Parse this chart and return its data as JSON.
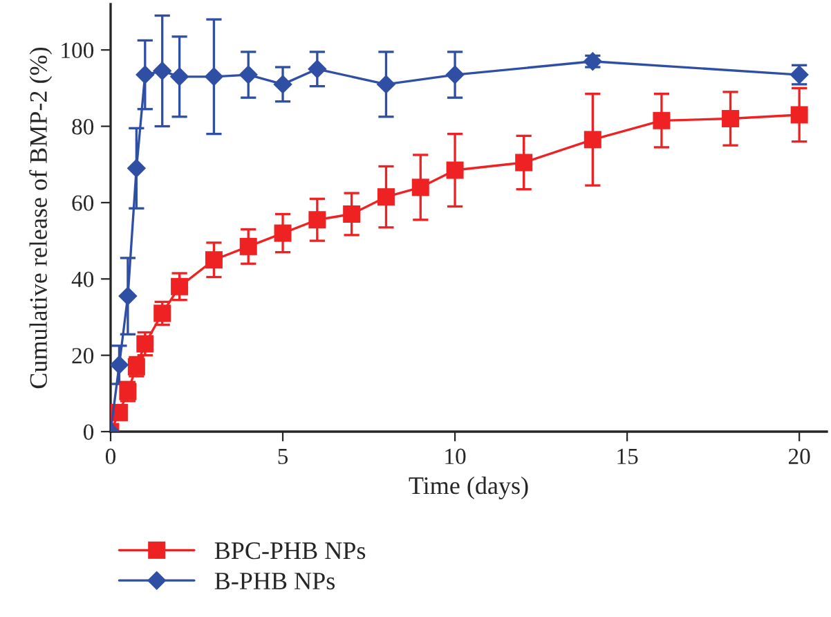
{
  "chart_data": {
    "type": "line",
    "xlabel": "Time (days)",
    "ylabel": "Cumulative release of BMP-2 (%)",
    "xlim": [
      0,
      20.8
    ],
    "ylim": [
      0,
      112
    ],
    "xticks": [
      0,
      5,
      10,
      15,
      20
    ],
    "yticks": [
      0,
      20,
      40,
      60,
      80,
      100
    ],
    "grid": false,
    "legend": "bottom",
    "line_style": "solid",
    "series": [
      {
        "name": "BPC-PHB NPs",
        "color": "#ee2222",
        "marker": "square",
        "x": [
          0,
          0.25,
          0.5,
          0.75,
          1,
          1.5,
          2,
          3,
          4,
          5,
          6,
          7,
          8,
          9,
          10,
          12,
          14,
          16,
          18,
          20
        ],
        "values": [
          0,
          5,
          10.5,
          17,
          23,
          31,
          38,
          45,
          48.5,
          52,
          55.5,
          57,
          61.5,
          64,
          68.5,
          70.5,
          76.5,
          81.5,
          82,
          83
        ],
        "errors": [
          null,
          1,
          2.5,
          2.5,
          3,
          3,
          3.5,
          4.5,
          4.5,
          5,
          5.5,
          5.5,
          8,
          8.5,
          9.5,
          7,
          12,
          7,
          7,
          7
        ]
      },
      {
        "name": "B-PHB NPs",
        "color": "#2e4fa3",
        "marker": "diamond",
        "x": [
          0,
          0.25,
          0.5,
          0.75,
          1,
          1.5,
          2,
          3,
          4,
          5,
          6,
          8,
          10,
          14,
          20
        ],
        "values": [
          0,
          17.5,
          35.5,
          69,
          93.5,
          94.5,
          93,
          93,
          93.5,
          91,
          95,
          91,
          93.5,
          97,
          93.5
        ],
        "errors": [
          null,
          5,
          10,
          10.5,
          9,
          14.5,
          10.5,
          15,
          6,
          4.5,
          4.5,
          8.5,
          6,
          1.5,
          2.5
        ]
      }
    ]
  }
}
